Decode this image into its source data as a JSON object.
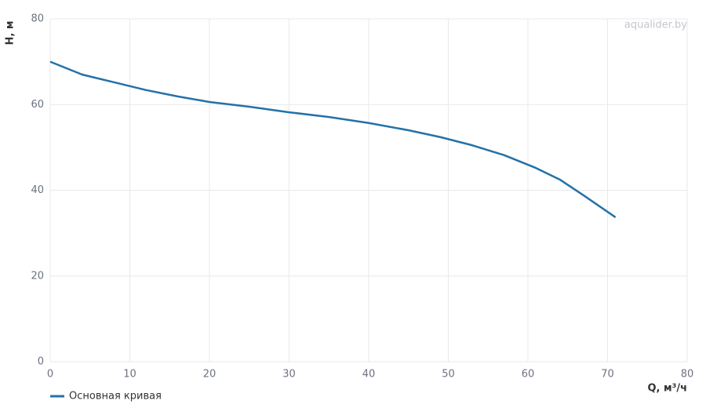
{
  "chart_data": {
    "type": "line",
    "x_label": "Q, м³/ч",
    "y_label": "H, м",
    "watermark": "aqualider.by",
    "xlim": [
      0,
      80
    ],
    "xticks": [
      0,
      10,
      20,
      30,
      40,
      50,
      60,
      70,
      80
    ],
    "ylim": [
      0,
      80
    ],
    "yticks": [
      0,
      20,
      40,
      60,
      80
    ],
    "grid": true,
    "legend": "bottom-left",
    "x": [
      0,
      4,
      8,
      12,
      16,
      20,
      25,
      30,
      35,
      40,
      45,
      49,
      53,
      57,
      61,
      64,
      67,
      71
    ],
    "series": [
      {
        "name": "Основная кривая",
        "color": "#2471a8",
        "values": [
          70.0,
          67.0,
          65.2,
          63.4,
          61.9,
          60.6,
          59.5,
          58.2,
          57.1,
          55.7,
          54.0,
          52.4,
          50.5,
          48.2,
          45.2,
          42.5,
          38.8,
          33.7
        ]
      }
    ]
  }
}
